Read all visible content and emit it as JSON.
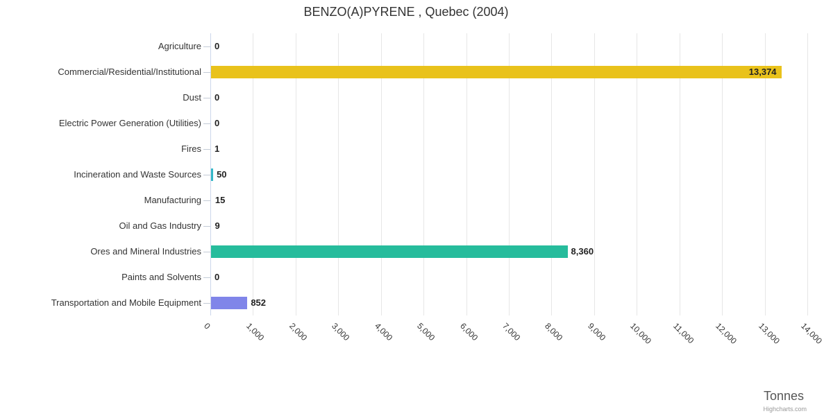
{
  "credits": "Highcharts.com",
  "chart_data": {
    "type": "bar",
    "orientation": "horizontal",
    "title": "BENZO(A)PYRENE , Quebec (2004)",
    "xlabel": "Tonnes",
    "xlim": [
      0,
      14000
    ],
    "grid": true,
    "legend": false,
    "categories": [
      "Agriculture",
      "Commercial/Residential/Institutional",
      "Dust",
      "Electric Power Generation (Utilities)",
      "Fires",
      "Incineration and Waste Sources",
      "Manufacturing",
      "Oil and Gas Industry",
      "Ores and Mineral Industries",
      "Paints and Solvents",
      "Transportation and Mobile Equipment"
    ],
    "values": [
      0,
      13374,
      0,
      0,
      1,
      50,
      15,
      9,
      8360,
      0,
      852
    ],
    "value_labels": [
      "0",
      "13,374",
      "0",
      "0",
      "1",
      "50",
      "15",
      "9",
      "8,360",
      "0",
      "852"
    ],
    "bar_colors": [
      "#7cb5ec",
      "#e9c21b",
      "#7cb5ec",
      "#7cb5ec",
      "#7cb5ec",
      "#35b8c8",
      "#7cb5ec",
      "#7cb5ec",
      "#26bc9c",
      "#7cb5ec",
      "#8085e9"
    ],
    "xtick_values": [
      0,
      1000,
      2000,
      3000,
      4000,
      5000,
      6000,
      7000,
      8000,
      9000,
      10000,
      11000,
      12000,
      13000,
      14000
    ],
    "xtick_labels": [
      "0",
      "1,000",
      "2,000",
      "3,000",
      "4,000",
      "5,000",
      "6,000",
      "7,000",
      "8,000",
      "9,000",
      "10,000",
      "11,000",
      "12,000",
      "13,000",
      "14,000"
    ],
    "colors": {
      "gridline": "#e6e6e6",
      "axis_line": "#ccd6eb",
      "title_text": "#333333",
      "label_text": "#333333"
    }
  }
}
